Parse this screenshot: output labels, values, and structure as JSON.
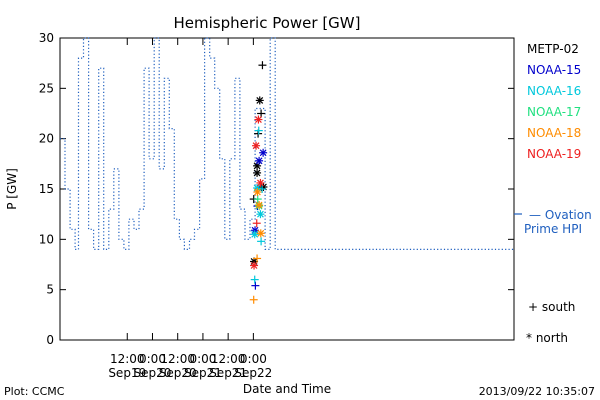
{
  "footer": {
    "left": "Plot: CCMC",
    "right": "2013/09/22 10:35:07"
  },
  "legend": {
    "satellites": [
      {
        "label": "METP-02",
        "color": "#000000"
      },
      {
        "label": "NOAA-15",
        "color": "#0000cc"
      },
      {
        "label": "NOAA-16",
        "color": "#00c8dc"
      },
      {
        "label": "NOAA-17",
        "color": "#20e080"
      },
      {
        "label": "NOAA-18",
        "color": "#ff8c00"
      },
      {
        "label": "NOAA-19",
        "color": "#ee2020"
      }
    ],
    "ovation_line1": "— Ovation",
    "ovation_line2": "Prime HPI",
    "ovation_color": "#1f5fbf",
    "south_label": "+ south",
    "north_label": "* north"
  },
  "chart_data": {
    "type": "line",
    "title": "Hemispheric Power [GW]",
    "xlabel": "Date and Time",
    "ylabel": "P [GW]",
    "ylim": [
      0,
      30
    ],
    "xlim_hours": [
      -2.5,
      11.0
    ],
    "y_ticks": [
      0,
      5,
      10,
      15,
      20,
      25,
      30
    ],
    "x_ticks": [
      {
        "hours": -0.5,
        "line1": "12:00",
        "line2": "Sep19"
      },
      {
        "hours": 0.25,
        "line1": "0:00",
        "line2": "Sep20"
      },
      {
        "hours": 1.0,
        "line1": "12:00",
        "line2": "Sep20"
      },
      {
        "hours": 1.75,
        "line1": "0:00",
        "line2": "Sep21"
      },
      {
        "hours": 2.5,
        "line1": "12:00",
        "line2": "Sep21"
      },
      {
        "hours": 3.25,
        "line1": "0:00",
        "line2": "Sep22"
      }
    ],
    "ovation_series": {
      "name": "Ovation Prime HPI",
      "x": [
        -2.5,
        -2.35,
        -2.2,
        -2.05,
        -1.95,
        -1.8,
        -1.65,
        -1.5,
        -1.35,
        -1.2,
        -1.05,
        -0.9,
        -0.75,
        -0.6,
        -0.45,
        -0.3,
        -0.15,
        0.0,
        0.15,
        0.3,
        0.45,
        0.6,
        0.75,
        0.9,
        1.05,
        1.2,
        1.35,
        1.5,
        1.65,
        1.8,
        1.95,
        2.1,
        2.25,
        2.4,
        2.55,
        2.7,
        2.85,
        3.0,
        3.15,
        3.3,
        3.45,
        3.6,
        3.75,
        3.9,
        4.05
      ],
      "y": [
        20,
        15,
        11,
        9,
        28,
        30,
        11,
        9,
        27,
        9,
        13,
        17,
        10,
        9,
        12,
        11,
        13,
        27,
        18,
        30,
        17,
        26,
        21,
        12,
        10,
        9,
        10,
        11,
        16,
        30,
        28,
        25,
        18,
        10,
        18,
        26,
        13,
        10,
        12,
        23,
        23,
        9,
        30,
        9,
        9
      ]
    },
    "satellite_points": [
      {
        "sat": "METP-02",
        "hemi": "south",
        "t": 3.52,
        "p": 27.3
      },
      {
        "sat": "METP-02",
        "hemi": "north",
        "t": 3.44,
        "p": 23.8
      },
      {
        "sat": "METP-02",
        "hemi": "south",
        "t": 3.48,
        "p": 22.5
      },
      {
        "sat": "METP-02",
        "hemi": "south",
        "t": 3.39,
        "p": 20.5
      },
      {
        "sat": "METP-02",
        "hemi": "north",
        "t": 3.36,
        "p": 17.3
      },
      {
        "sat": "METP-02",
        "hemi": "north",
        "t": 3.36,
        "p": 16.6
      },
      {
        "sat": "METP-02",
        "hemi": "south",
        "t": 3.49,
        "p": 15.2
      },
      {
        "sat": "METP-02",
        "hemi": "north",
        "t": 3.55,
        "p": 15.2
      },
      {
        "sat": "METP-02",
        "hemi": "south",
        "t": 3.26,
        "p": 14.0
      },
      {
        "sat": "METP-02",
        "hemi": "north",
        "t": 3.27,
        "p": 7.8
      },
      {
        "sat": "NOAA-15",
        "hemi": "north",
        "t": 3.42,
        "p": 17.8
      },
      {
        "sat": "NOAA-15",
        "hemi": "north",
        "t": 3.54,
        "p": 18.6
      },
      {
        "sat": "NOAA-15",
        "hemi": "south",
        "t": 3.37,
        "p": 13.3
      },
      {
        "sat": "NOAA-15",
        "hemi": "north",
        "t": 3.3,
        "p": 10.9
      },
      {
        "sat": "NOAA-15",
        "hemi": "south",
        "t": 3.31,
        "p": 5.4
      },
      {
        "sat": "NOAA-16",
        "hemi": "south",
        "t": 3.41,
        "p": 20.8
      },
      {
        "sat": "NOAA-16",
        "hemi": "north",
        "t": 3.36,
        "p": 15.1
      },
      {
        "sat": "NOAA-16",
        "hemi": "south",
        "t": 3.51,
        "p": 15.0
      },
      {
        "sat": "NOAA-16",
        "hemi": "north",
        "t": 3.46,
        "p": 12.5
      },
      {
        "sat": "NOAA-16",
        "hemi": "north",
        "t": 3.29,
        "p": 10.5
      },
      {
        "sat": "NOAA-16",
        "hemi": "south",
        "t": 3.48,
        "p": 9.8
      },
      {
        "sat": "NOAA-16",
        "hemi": "south",
        "t": 3.29,
        "p": 6.0
      },
      {
        "sat": "NOAA-17",
        "hemi": "south",
        "t": 3.38,
        "p": 14.0
      },
      {
        "sat": "NOAA-17",
        "hemi": "north",
        "t": 3.42,
        "p": 13.3
      },
      {
        "sat": "NOAA-18",
        "hemi": "north",
        "t": 3.37,
        "p": 14.7
      },
      {
        "sat": "NOAA-18",
        "hemi": "north",
        "t": 3.42,
        "p": 13.4
      },
      {
        "sat": "NOAA-18",
        "hemi": "north",
        "t": 3.47,
        "p": 10.6
      },
      {
        "sat": "NOAA-18",
        "hemi": "south",
        "t": 3.36,
        "p": 8.1
      },
      {
        "sat": "NOAA-18",
        "hemi": "south",
        "t": 3.26,
        "p": 4.0
      },
      {
        "sat": "NOAA-19",
        "hemi": "north",
        "t": 3.4,
        "p": 21.9
      },
      {
        "sat": "NOAA-19",
        "hemi": "north",
        "t": 3.33,
        "p": 19.3
      },
      {
        "sat": "NOAA-19",
        "hemi": "north",
        "t": 3.46,
        "p": 15.6
      },
      {
        "sat": "NOAA-19",
        "hemi": "south",
        "t": 3.35,
        "p": 11.6
      },
      {
        "sat": "NOAA-19",
        "hemi": "north",
        "t": 3.27,
        "p": 7.4
      }
    ]
  }
}
